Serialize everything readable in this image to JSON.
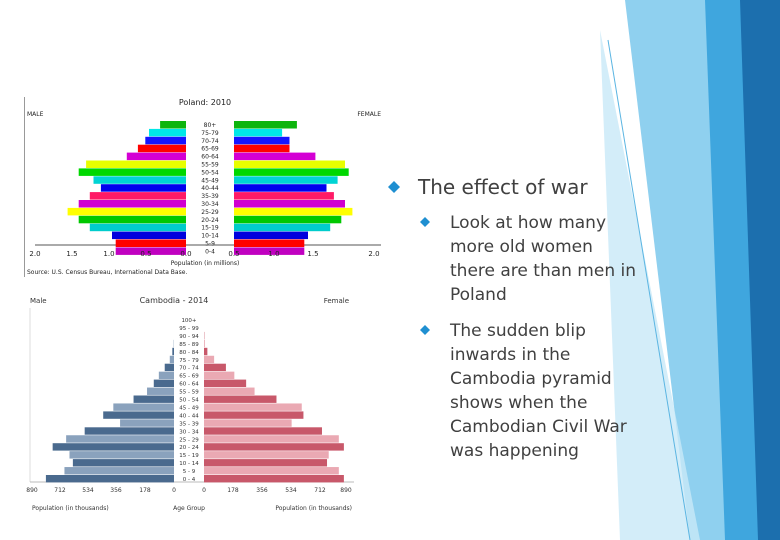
{
  "slide": {
    "heading": "The effect of war",
    "bullets": [
      "Look at how many more old women there are than men in Poland",
      "The sudden blip inwards in the Cambodia pyramid shows when the Cambodian Civil War was happening"
    ],
    "accent": "#1f8fd1"
  },
  "chart_data": [
    {
      "type": "bar",
      "title": "Poland: 2010",
      "left_label": "MALE",
      "right_label": "FEMALE",
      "xlabel": "Population (in millions)",
      "source": "Source: U.S. Census Bureau, International Data Base.",
      "x_ticks": [
        "2.0",
        "1.5",
        "1.0",
        "0.5",
        "0.0",
        "0.5",
        "1.0",
        "1.5",
        "2.0"
      ],
      "xlim": [
        0,
        2.0
      ],
      "categories": [
        "80+",
        "75-79",
        "70-74",
        "65-69",
        "60-64",
        "55-59",
        "50-54",
        "45-49",
        "40-44",
        "35-39",
        "30-34",
        "25-29",
        "20-24",
        "15-19",
        "10-14",
        "5-9",
        "0-4"
      ],
      "series": [
        {
          "name": "Male",
          "values": [
            0.35,
            0.5,
            0.55,
            0.65,
            0.8,
            1.35,
            1.45,
            1.25,
            1.15,
            1.3,
            1.45,
            1.6,
            1.45,
            1.3,
            1.0,
            0.95,
            0.95
          ]
        },
        {
          "name": "Female",
          "values": [
            0.85,
            0.65,
            0.75,
            0.75,
            1.1,
            1.5,
            1.55,
            1.4,
            1.25,
            1.35,
            1.5,
            1.6,
            1.45,
            1.3,
            1.0,
            0.95,
            0.95
          ]
        }
      ],
      "colors": [
        "#0db50d",
        "#00e8e8",
        "#1515ff",
        "#ff0000",
        "#d400d4",
        "#e8ff00",
        "#00d800",
        "#00d4d4",
        "#0000ee",
        "#ff1a66",
        "#d000d0",
        "#ffff00",
        "#00c800",
        "#00cccc",
        "#0000dd",
        "#ff0000",
        "#c000c0"
      ]
    },
    {
      "type": "bar",
      "title": "Cambodia - 2014",
      "left_label": "Male",
      "right_label": "Female",
      "xlabel_left": "Population (in thousands)",
      "xlabel_center": "Age Group",
      "xlabel_right": "Population (in thousands)",
      "x_ticks_left": [
        "890",
        "712",
        "534",
        "356",
        "178",
        "0"
      ],
      "x_ticks_right": [
        "0",
        "178",
        "356",
        "534",
        "712",
        "890"
      ],
      "xlim": [
        0,
        890
      ],
      "categories": [
        "100+",
        "95 - 99",
        "90 - 94",
        "85 - 89",
        "80 - 84",
        "75 - 79",
        "70 - 74",
        "65 - 69",
        "60 - 64",
        "55 - 59",
        "50 - 54",
        "45 - 49",
        "40 - 44",
        "35 - 39",
        "30 - 34",
        "25 - 29",
        "20 - 24",
        "15 - 19",
        "10 - 14",
        "5 - 9",
        "0 - 4"
      ],
      "series": [
        {
          "name": "Male",
          "values": [
            0,
            0,
            0,
            2,
            10,
            25,
            55,
            90,
            120,
            160,
            240,
            360,
            420,
            320,
            530,
            640,
            720,
            620,
            600,
            650,
            760
          ]
        },
        {
          "name": "Female",
          "values": [
            0,
            0,
            2,
            5,
            20,
            60,
            130,
            180,
            250,
            300,
            430,
            580,
            590,
            520,
            700,
            800,
            830,
            740,
            730,
            800,
            830
          ]
        }
      ],
      "male_color": "#4a6a8e",
      "male_color_light": "#8aa2bd",
      "female_color": "#c8586a",
      "female_color_light": "#eaa9b3"
    }
  ]
}
